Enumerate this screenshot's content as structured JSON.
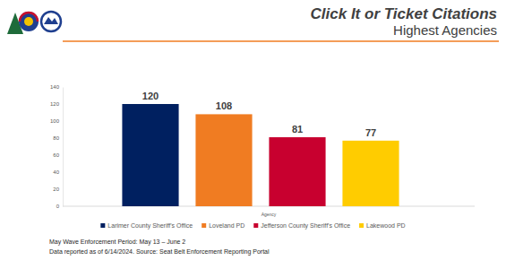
{
  "chart_data": {
    "type": "bar",
    "title": "Click It or Ticket Citations",
    "subtitle": "Highest Agencies",
    "x_label": "Agency",
    "categories": [
      "Larimer County Sheriff's Office",
      "Loveland PD",
      "Jefferson County Sheriff's Office",
      "Lakewood PD"
    ],
    "values": [
      120,
      108,
      81,
      77
    ],
    "colors": [
      "#002060",
      "#f07c22",
      "#c8002f",
      "#ffcc00"
    ],
    "ylim": [
      0,
      140
    ],
    "yticks": [
      0,
      20,
      40,
      60,
      80,
      100,
      120,
      140
    ],
    "grid": false,
    "data_labels": true,
    "tick_labels": "y",
    "legend": "bottom",
    "notes": [
      "May Wave Enforcement Period: May 13 – June 2",
      "Data reported as of 6/14/2024. Source: Seat Belt Enforcement Reporting Portal"
    ]
  }
}
